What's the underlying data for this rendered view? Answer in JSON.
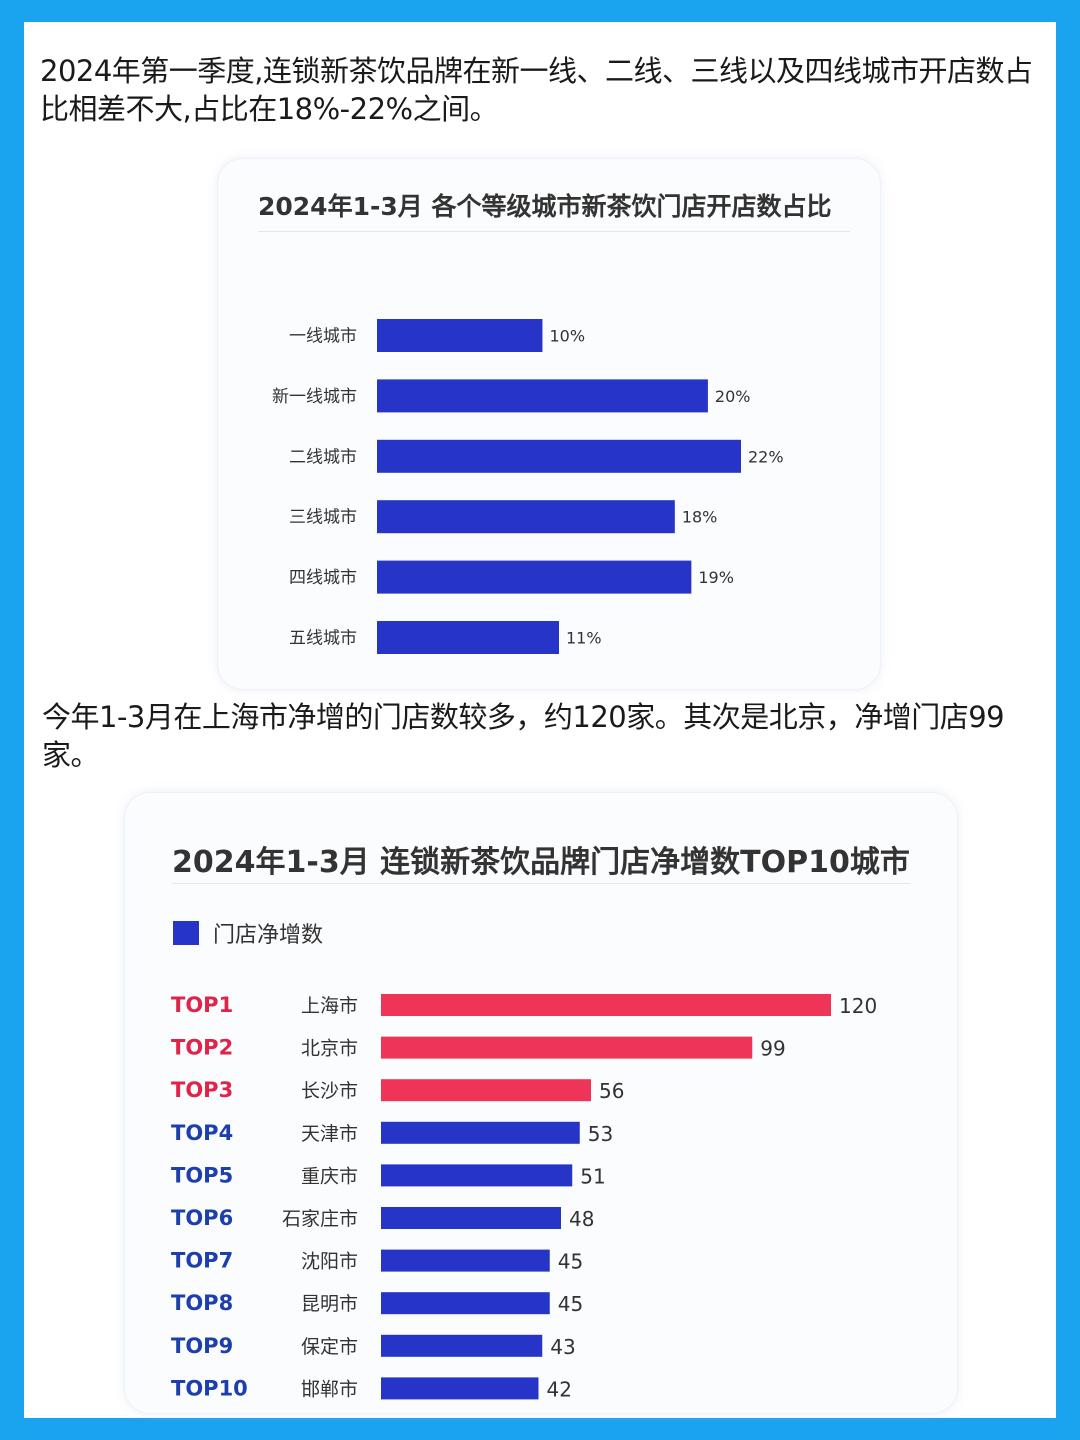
{
  "paragraphs": {
    "p1": "2024年第一季度,连锁新茶饮品牌在新一线、二线、三线以及四线城市开店数占比相差不大,占比在18%-22%之间。",
    "p2": "今年1-3月在上海市净增的门店数较多，约120家。其次是北京，净增门店99家。"
  },
  "colors": {
    "blue_bar": "#2634c8",
    "red_bar": "#ee3558",
    "rank_red": "#e02449",
    "rank_blue": "#1d3fae"
  },
  "chart_data": [
    {
      "type": "bar",
      "orientation": "horizontal",
      "title": "2024年1-3月 各个等级城市新茶饮门店开店数占比",
      "categories": [
        "一线城市",
        "新一线城市",
        "二线城市",
        "三线城市",
        "四线城市",
        "五线城市"
      ],
      "values": [
        10,
        20,
        22,
        18,
        19,
        11
      ],
      "value_labels": [
        "10%",
        "20%",
        "22%",
        "18%",
        "19%",
        "11%"
      ],
      "unit": "%",
      "xlim": [
        0,
        22
      ],
      "grid": false
    },
    {
      "type": "bar",
      "orientation": "horizontal",
      "title": "2024年1-3月 连锁新茶饮品牌门店净增数TOP10城市",
      "legend": [
        "门店净增数"
      ],
      "legend_position": "top-left",
      "ranks": [
        "TOP1",
        "TOP2",
        "TOP3",
        "TOP4",
        "TOP5",
        "TOP6",
        "TOP7",
        "TOP8",
        "TOP9",
        "TOP10"
      ],
      "categories": [
        "上海市",
        "北京市",
        "长沙市",
        "天津市",
        "重庆市",
        "石家庄市",
        "沈阳市",
        "昆明市",
        "保定市",
        "邯郸市"
      ],
      "series": [
        {
          "name": "门店净增数",
          "values": [
            120,
            99,
            56,
            53,
            51,
            48,
            45,
            45,
            43,
            42
          ]
        }
      ],
      "highlight_top": 3,
      "xlim": [
        0,
        120
      ],
      "grid": false
    }
  ]
}
